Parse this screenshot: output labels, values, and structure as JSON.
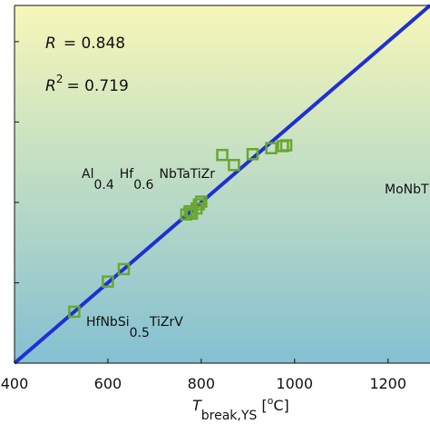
{
  "chart_data": {
    "type": "scatter",
    "xlabel": "T_break,YS [°C]",
    "xlabel_parts": {
      "main": "T",
      "sub": "break,YS",
      "unit_open": " [",
      "unit_deg": "o",
      "unit_tail": "C]"
    },
    "ylabel": "",
    "xlim": [
      400,
      1290
    ],
    "ylim": [
      400,
      1290
    ],
    "x_ticks": [
      400,
      600,
      800,
      1000,
      1200
    ],
    "x_tick_labels": [
      "400",
      "600",
      "800",
      "1000",
      "1200"
    ],
    "y_ticks": [
      400,
      600,
      800,
      1000,
      1200
    ],
    "grid": false,
    "stats": {
      "r_symbol": "R",
      "r_value": "= 0.848",
      "r2_symbol": "R",
      "r2_exp": "2",
      "r2_value": "= 0.719"
    },
    "fit_line": {
      "x": [
        400,
        1290
      ],
      "y": [
        400,
        1290
      ]
    },
    "points": {
      "x": [
        528,
        600,
        634,
        768,
        775,
        780,
        790,
        795,
        800,
        845,
        870,
        910,
        950,
        975,
        982
      ],
      "y": [
        528,
        603,
        634,
        770,
        778,
        772,
        785,
        795,
        802,
        918,
        893,
        920,
        935,
        940,
        942
      ]
    },
    "annotations": [
      {
        "id": "al-hf",
        "parts": [
          "Al",
          "0.4",
          "Hf",
          "0.6",
          "NbTaTiZr"
        ]
      },
      {
        "id": "mo-nb",
        "parts": [
          "MoNbT"
        ]
      },
      {
        "id": "hfnbsi",
        "parts": [
          "HfNbSi",
          "0.5",
          "TiZrV"
        ]
      }
    ],
    "colors": {
      "bg_top": "#f6f7b8",
      "bg_bottom": "#84c0d2",
      "fit_line": "#1f2fd6",
      "marker": "#6aa632"
    }
  }
}
